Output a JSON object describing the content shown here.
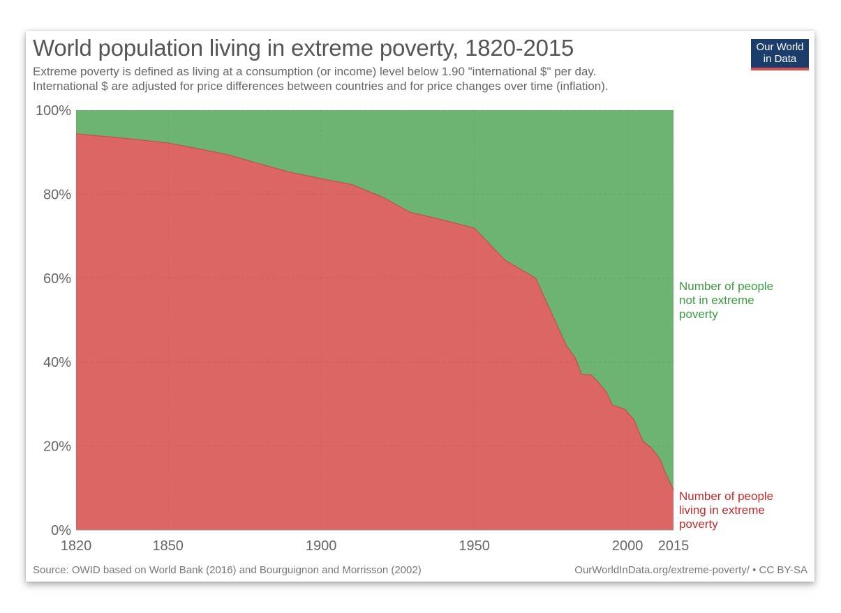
{
  "header": {
    "title": "World population living in extreme poverty, 1820-2015",
    "subtitle_line1": "Extreme poverty is defined as living at a consumption (or income) level below 1.90 \"international $\" per day.",
    "subtitle_line2": "International $ are adjusted for price differences between countries and for price changes over time (inflation)."
  },
  "logo": {
    "line1": "Our World",
    "line2": "in Data",
    "bg_color": "#1a3d6b",
    "accent_color": "#d94f4f"
  },
  "footer": {
    "source": "Source: OWID based on World Bank (2016) and Bourguignon and Morrisson (2002)",
    "link": "OurWorldInData.org/extreme-poverty/ • CC BY-SA"
  },
  "chart_data": {
    "type": "area",
    "stacked": "percent",
    "title": "World population living in extreme poverty, 1820-2015",
    "xlabel": "",
    "ylabel": "",
    "xlim": [
      1820,
      2015
    ],
    "ylim": [
      0,
      100
    ],
    "x_ticks": [
      1820,
      1850,
      1900,
      1950,
      2000,
      2015
    ],
    "y_ticks": [
      "0%",
      "20%",
      "40%",
      "60%",
      "80%",
      "100%"
    ],
    "y_tick_values": [
      0,
      20,
      40,
      60,
      80,
      100
    ],
    "grid": true,
    "x": [
      1820,
      1830,
      1840,
      1850,
      1860,
      1870,
      1880,
      1890,
      1900,
      1910,
      1920,
      1929,
      1940,
      1950,
      1960,
      1970,
      1975,
      1980,
      1983,
      1985,
      1988,
      1990,
      1993,
      1995,
      1997,
      1999,
      2002,
      2005,
      2008,
      2010,
      2011,
      2012,
      2013,
      2015
    ],
    "series": [
      {
        "name": "Number of people living in extreme poverty",
        "label_line1": "Number of people",
        "label_line2": "living in extreme",
        "label_line3": "poverty",
        "color": "#dc6666",
        "label_color": "#c42a2a",
        "values": [
          94.4,
          93.7,
          93.0,
          92.2,
          90.8,
          89.3,
          87.2,
          85.2,
          83.7,
          82.3,
          79.3,
          75.7,
          73.8,
          71.9,
          64.3,
          60.0,
          52.0,
          44.0,
          40.9,
          37.0,
          37.0,
          35.6,
          33.0,
          29.8,
          29.3,
          28.8,
          26.4,
          21.2,
          19.4,
          17.5,
          16.3,
          14.2,
          12.6,
          9.6
        ]
      },
      {
        "name": "Number of people not in extreme poverty",
        "label_line1": "Number of people",
        "label_line2": "not in extreme",
        "label_line3": "poverty",
        "color": "#6db372",
        "label_color": "#3b9c40",
        "values": [
          5.6,
          6.3,
          7.0,
          7.8,
          9.2,
          10.7,
          12.8,
          14.8,
          16.3,
          17.7,
          20.7,
          24.3,
          26.2,
          28.1,
          35.7,
          40.0,
          48.0,
          56.0,
          59.1,
          63.0,
          63.0,
          64.4,
          67.0,
          70.2,
          70.7,
          71.2,
          73.6,
          78.8,
          80.6,
          82.5,
          83.7,
          85.8,
          87.4,
          90.4
        ]
      }
    ]
  }
}
